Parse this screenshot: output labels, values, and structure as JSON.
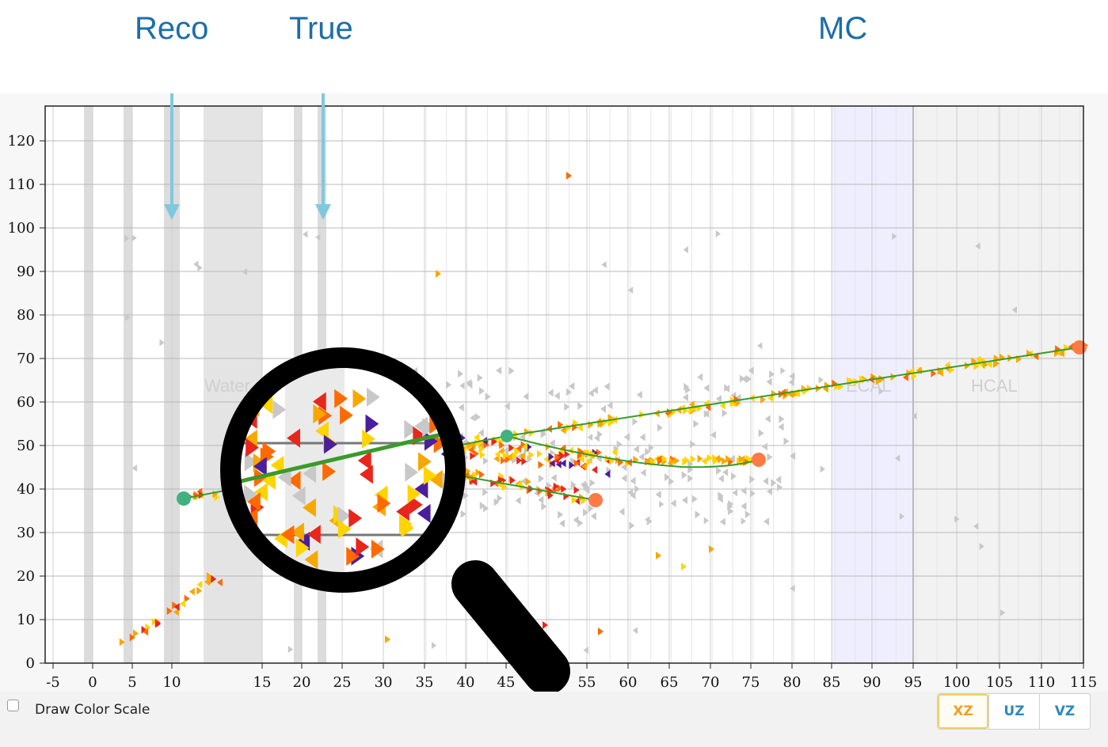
{
  "annotations": {
    "reco": "Reco",
    "true": "True",
    "mc": "MC"
  },
  "plot": {
    "x_ticks": [
      "-5",
      "0",
      "5",
      "10",
      "15",
      "20",
      "25",
      "30",
      "35",
      "40",
      "45",
      "50",
      "55",
      "60",
      "65",
      "70",
      "75",
      "80",
      "85",
      "90",
      "95",
      "100",
      "105",
      "110",
      "115"
    ],
    "y_ticks": [
      "0",
      "10",
      "20",
      "30",
      "40",
      "50",
      "60",
      "70",
      "80",
      "90",
      "100",
      "110",
      "120"
    ],
    "region_labels": {
      "water": "Water",
      "ecal": "ECAL",
      "hcal": "HCAL"
    },
    "colors": {
      "grid": "#cfcfcf",
      "detector_plane": "#dcdcdc",
      "water_region": "#e4e4e4",
      "ecal_region": "#eeeeff",
      "hcal_region": "#f2f2f2",
      "track": "#3a9a2a",
      "vertex": "#3fb27f",
      "endpoint": "#ff7a45",
      "hit_palette": [
        "#ffd400",
        "#f7a800",
        "#ff6a00",
        "#e8261c",
        "#4b1e9c",
        "#c8c8c8"
      ],
      "annotation_arrow": "#7fc9df"
    },
    "magnifier_icon": "magnifying-glass-icon"
  },
  "controls": {
    "color_scale_label": "Draw Color Scale",
    "color_scale_checked": false,
    "view_buttons": [
      {
        "label": "XZ",
        "active": true
      },
      {
        "label": "UZ",
        "active": false
      },
      {
        "label": "VZ",
        "active": false
      }
    ]
  }
}
